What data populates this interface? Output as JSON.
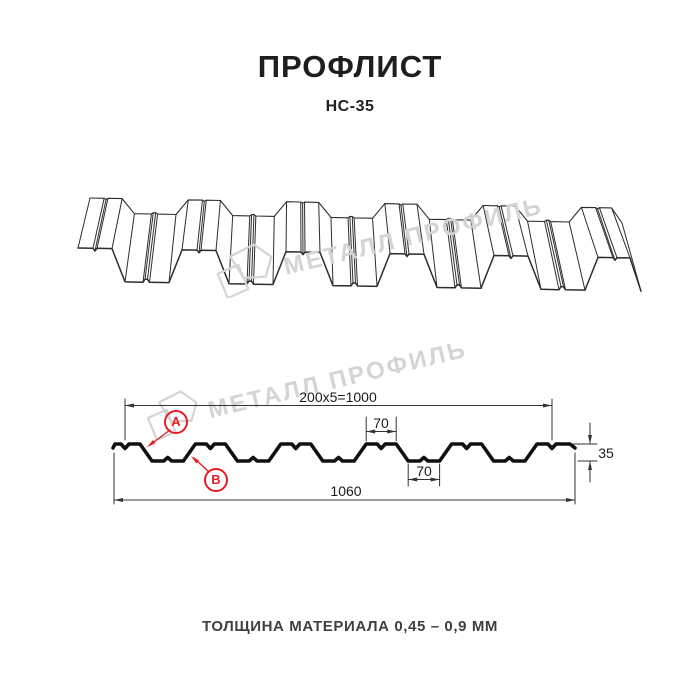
{
  "header": {
    "title": "ПРОФЛИСТ",
    "subtitle": "НС-35"
  },
  "watermark": {
    "text": "МЕТАЛЛ ПРОФИЛЬ"
  },
  "dimensions": {
    "top_width": "200x5=1000",
    "rib_top_width": "70",
    "rib_bottom_width": "70",
    "profile_height": "35",
    "total_width": "1060"
  },
  "callouts": {
    "a": "A",
    "b": "B"
  },
  "footer": {
    "note": "ТОЛЩИНА МАТЕРИАЛА 0,45 – 0,9 ММ"
  },
  "colors": {
    "background": "#ffffff",
    "text": "#1e1e1e",
    "line_3d": "#2d2d2d",
    "profile_line": "#101010",
    "dim_line": "#333333",
    "accent_red": "#e31e24",
    "watermark": "#d4d4d4"
  }
}
